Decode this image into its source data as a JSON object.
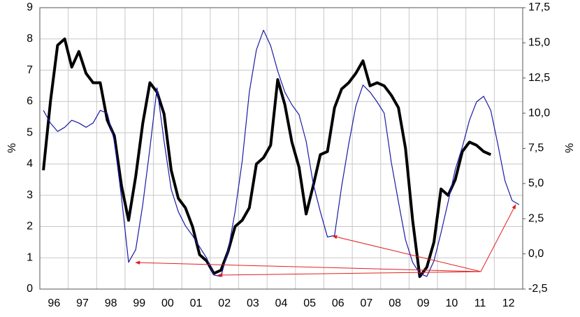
{
  "chart_data": {
    "type": "line",
    "categories": [
      "96",
      null,
      null,
      null,
      "97",
      null,
      null,
      null,
      "98",
      null,
      null,
      null,
      "99",
      null,
      null,
      null,
      "00",
      null,
      null,
      null,
      "01",
      null,
      null,
      null,
      "02",
      null,
      null,
      null,
      "03",
      null,
      null,
      null,
      "04",
      null,
      null,
      null,
      "05",
      null,
      null,
      null,
      "06",
      null,
      null,
      null,
      "07",
      null,
      null,
      null,
      "08",
      null,
      null,
      null,
      "09",
      null,
      null,
      null,
      "10",
      null,
      null,
      null,
      "11",
      null,
      null,
      null,
      "12",
      null,
      null,
      null
    ],
    "series": [
      {
        "color": "#000000",
        "width": 4,
        "values": [
          3.8,
          6.0,
          7.8,
          8.0,
          7.1,
          7.6,
          6.9,
          6.6,
          6.6,
          5.4,
          4.9,
          3.3,
          2.2,
          3.6,
          5.3,
          6.6,
          6.3,
          5.6,
          3.8,
          2.9,
          2.6,
          2.0,
          1.1,
          0.9,
          0.5,
          0.6,
          1.2,
          2.0,
          2.2,
          2.6,
          4.0,
          4.2,
          4.6,
          6.7,
          5.9,
          4.7,
          3.9,
          2.4,
          3.3,
          4.3,
          4.4,
          5.8,
          6.4,
          6.6,
          6.9,
          7.3,
          6.5,
          6.6,
          6.5,
          6.2,
          5.8,
          4.5,
          2.2,
          0.4,
          0.7,
          1.5,
          3.2,
          3.0,
          3.5,
          4.4,
          4.7,
          4.6,
          4.4,
          4.3,
          null,
          null,
          null,
          null
        ]
      },
      {
        "color": "#1a1aa8",
        "width": 1.2,
        "axis": "y2",
        "values": [
          10.2,
          9.3,
          8.7,
          9.0,
          9.5,
          9.3,
          9.0,
          9.3,
          10.2,
          10.0,
          8.0,
          4.0,
          -0.6,
          0.3,
          3.5,
          7.5,
          11.8,
          8.0,
          4.6,
          3.0,
          2.0,
          1.3,
          0.5,
          -0.3,
          -1.5,
          -1.6,
          0.2,
          3.0,
          6.6,
          11.5,
          14.5,
          15.9,
          14.8,
          13.0,
          11.5,
          10.6,
          9.9,
          8.0,
          5.0,
          3.0,
          1.2,
          1.3,
          4.8,
          7.8,
          10.5,
          12.0,
          11.5,
          10.8,
          10.0,
          6.5,
          3.7,
          1.0,
          -0.6,
          -1.4,
          -1.6,
          -0.5,
          1.5,
          3.7,
          6.0,
          7.6,
          9.5,
          10.8,
          11.2,
          10.2,
          7.8,
          5.2,
          3.8,
          3.5
        ]
      }
    ],
    "ylabel": "%",
    "y2label": "%",
    "ylim": [
      0,
      9
    ],
    "yticks": [
      0,
      1,
      2,
      3,
      4,
      5,
      6,
      7,
      8,
      9
    ],
    "y2lim": [
      -2.5,
      17.5
    ],
    "y2ticks": [
      {
        "value": -2.5,
        "label": "-2,5"
      },
      {
        "value": 0,
        "label": "0,0"
      },
      {
        "value": 2.5,
        "label": "2,5"
      },
      {
        "value": 5,
        "label": "5,0"
      },
      {
        "value": 7.5,
        "label": "7,5"
      },
      {
        "value": 10,
        "label": "10,0"
      },
      {
        "value": 12.5,
        "label": "12,5"
      },
      {
        "value": 15,
        "label": "15,0"
      },
      {
        "value": 17.5,
        "label": "17,5"
      }
    ],
    "grid": true
  }
}
